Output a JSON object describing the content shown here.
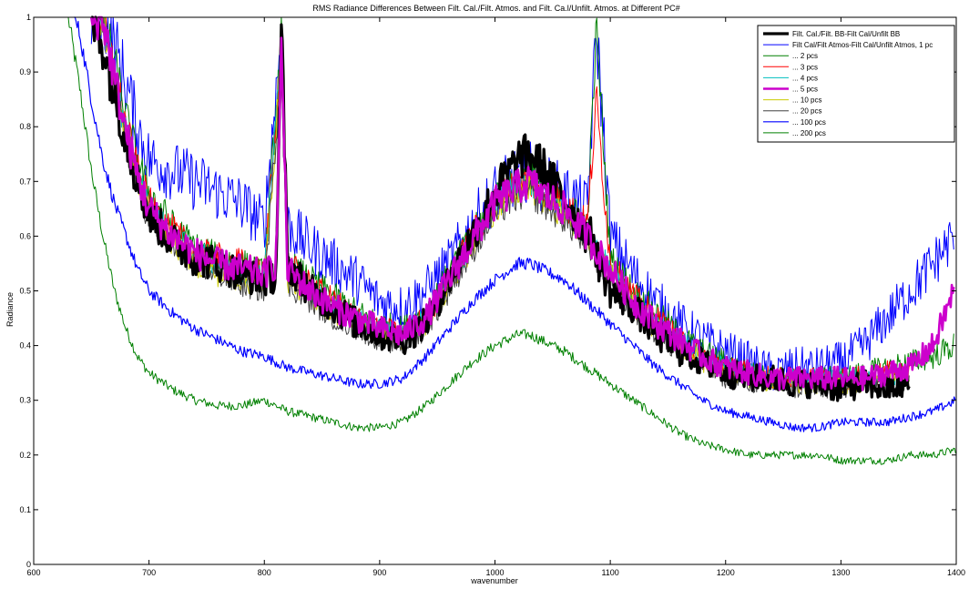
{
  "chart_data": {
    "type": "line",
    "title": "RMS Radiance Differences Between Filt. Cal./Filt. Atmos. and Filt. Ca.l/Unfilt. Atmos. at Different PC#",
    "xlabel": "wavenumber",
    "ylabel": "Radiance",
    "xlim": [
      600,
      1400
    ],
    "ylim": [
      0,
      1
    ],
    "xticks": [
      "600",
      "700",
      "800",
      "900",
      "1000",
      "1100",
      "1200",
      "1300",
      "1400"
    ],
    "yticks": [
      "0",
      "0.1",
      "0.2",
      "0.3",
      "0.4",
      "0.5",
      "0.6",
      "0.7",
      "0.8",
      "0.9",
      "1"
    ],
    "grid": false,
    "legend_position": "top-right",
    "series": [
      {
        "name": "Filt. Cal./Filt. BB-Filt Cal/Unfilt BB",
        "color": "#000000",
        "x": [
          650,
          660,
          670,
          680,
          690,
          700,
          720,
          740,
          760,
          780,
          800,
          810,
          815,
          820,
          840,
          860,
          880,
          900,
          920,
          940,
          960,
          980,
          1000,
          1020,
          1030,
          1040,
          1060,
          1080,
          1085,
          1090,
          1100,
          1120,
          1140,
          1160,
          1180,
          1200,
          1220,
          1240,
          1260,
          1280,
          1300,
          1320,
          1340,
          1360
        ],
        "y": [
          1.0,
          0.95,
          0.86,
          0.78,
          0.7,
          0.64,
          0.59,
          0.56,
          0.55,
          0.53,
          0.52,
          0.53,
          0.98,
          0.55,
          0.5,
          0.47,
          0.44,
          0.42,
          0.41,
          0.44,
          0.52,
          0.6,
          0.68,
          0.74,
          0.75,
          0.73,
          0.67,
          0.6,
          0.6,
          0.55,
          0.5,
          0.47,
          0.42,
          0.39,
          0.37,
          0.35,
          0.34,
          0.34,
          0.33,
          0.33,
          0.32,
          0.33,
          0.32,
          0.33
        ]
      },
      {
        "name": "Filt Cal/Filt Atmos-Filt Cal/Unfilt Atmos, 1 pc",
        "color": "#0000ff",
        "x": [
          650,
          660,
          670,
          680,
          690,
          700,
          720,
          740,
          760,
          780,
          800,
          815,
          820,
          840,
          860,
          880,
          900,
          920,
          940,
          960,
          980,
          1000,
          1020,
          1030,
          1040,
          1060,
          1080,
          1088,
          1100,
          1120,
          1140,
          1160,
          1180,
          1200,
          1220,
          1240,
          1260,
          1280,
          1300,
          1320,
          1340,
          1360,
          1380,
          1398
        ],
        "y": [
          1.0,
          1.0,
          0.95,
          0.88,
          0.8,
          0.74,
          0.72,
          0.7,
          0.68,
          0.66,
          0.62,
          0.98,
          0.62,
          0.58,
          0.55,
          0.52,
          0.48,
          0.47,
          0.5,
          0.55,
          0.62,
          0.68,
          0.71,
          0.72,
          0.7,
          0.68,
          0.65,
          0.98,
          0.6,
          0.53,
          0.48,
          0.44,
          0.41,
          0.39,
          0.37,
          0.35,
          0.36,
          0.36,
          0.37,
          0.4,
          0.45,
          0.5,
          0.55,
          0.6
        ]
      },
      {
        "name": "... 2 pcs",
        "color": "#008000",
        "x": [
          650,
          660,
          670,
          680,
          690,
          700,
          720,
          740,
          760,
          780,
          800,
          815,
          820,
          840,
          860,
          880,
          900,
          920,
          940,
          960,
          980,
          1000,
          1020,
          1030,
          1040,
          1060,
          1080,
          1088,
          1100,
          1120,
          1140,
          1160,
          1180,
          1200,
          1220,
          1240,
          1260,
          1280,
          1300,
          1320,
          1340,
          1360,
          1380,
          1398
        ],
        "y": [
          1.0,
          1.0,
          0.92,
          0.82,
          0.74,
          0.68,
          0.62,
          0.58,
          0.56,
          0.55,
          0.53,
          0.98,
          0.55,
          0.52,
          0.49,
          0.46,
          0.44,
          0.43,
          0.46,
          0.53,
          0.6,
          0.67,
          0.7,
          0.71,
          0.7,
          0.66,
          0.62,
          0.98,
          0.56,
          0.5,
          0.46,
          0.42,
          0.39,
          0.37,
          0.35,
          0.34,
          0.34,
          0.34,
          0.34,
          0.35,
          0.36,
          0.37,
          0.38,
          0.4
        ]
      },
      {
        "name": "... 3 pcs",
        "color": "#ff0000",
        "x": [
          650,
          660,
          670,
          680,
          690,
          700,
          720,
          740,
          760,
          780,
          800,
          815,
          820,
          840,
          860,
          880,
          900,
          920,
          940,
          960,
          980,
          1000,
          1020,
          1030,
          1040,
          1060,
          1080,
          1088,
          1100,
          1120,
          1140,
          1160,
          1180,
          1200,
          1220,
          1240,
          1260,
          1280,
          1300,
          1320,
          1340,
          1360
        ],
        "y": [
          1.0,
          1.0,
          0.9,
          0.8,
          0.72,
          0.66,
          0.61,
          0.57,
          0.56,
          0.55,
          0.53,
          0.97,
          0.55,
          0.51,
          0.48,
          0.45,
          0.43,
          0.42,
          0.45,
          0.52,
          0.6,
          0.66,
          0.7,
          0.7,
          0.69,
          0.66,
          0.62,
          0.85,
          0.55,
          0.49,
          0.45,
          0.41,
          0.38,
          0.36,
          0.35,
          0.34,
          0.34,
          0.34,
          0.34,
          0.34,
          0.35,
          0.35
        ]
      },
      {
        "name": "... 4 pcs",
        "color": "#00bfbf",
        "x": [
          650,
          660,
          670,
          680,
          690,
          700,
          720,
          740,
          760,
          780,
          800,
          815,
          820,
          840,
          860,
          880,
          900,
          920,
          940,
          960,
          980,
          1000,
          1020,
          1030,
          1040,
          1060,
          1080,
          1100,
          1120,
          1140,
          1160,
          1180,
          1200,
          1220,
          1240,
          1260,
          1280,
          1300,
          1320,
          1340,
          1360
        ],
        "y": [
          1.0,
          1.0,
          0.89,
          0.79,
          0.71,
          0.65,
          0.6,
          0.57,
          0.55,
          0.54,
          0.53,
          0.96,
          0.54,
          0.5,
          0.47,
          0.45,
          0.43,
          0.42,
          0.45,
          0.52,
          0.59,
          0.66,
          0.69,
          0.7,
          0.68,
          0.65,
          0.6,
          0.54,
          0.48,
          0.44,
          0.41,
          0.38,
          0.36,
          0.35,
          0.34,
          0.34,
          0.34,
          0.34,
          0.34,
          0.34,
          0.35
        ]
      },
      {
        "name": "... 5 pcs",
        "color": "#cc00cc",
        "x": [
          650,
          660,
          670,
          680,
          690,
          700,
          720,
          740,
          760,
          780,
          800,
          810,
          815,
          820,
          840,
          860,
          880,
          900,
          920,
          940,
          960,
          980,
          1000,
          1020,
          1030,
          1040,
          1060,
          1080,
          1100,
          1120,
          1140,
          1160,
          1180,
          1200,
          1220,
          1240,
          1260,
          1280,
          1300,
          1320,
          1340,
          1360,
          1380,
          1398
        ],
        "y": [
          1.0,
          1.0,
          0.89,
          0.79,
          0.71,
          0.65,
          0.6,
          0.57,
          0.55,
          0.54,
          0.53,
          0.55,
          0.95,
          0.54,
          0.5,
          0.47,
          0.45,
          0.43,
          0.42,
          0.45,
          0.52,
          0.59,
          0.66,
          0.69,
          0.7,
          0.68,
          0.65,
          0.6,
          0.54,
          0.48,
          0.44,
          0.41,
          0.38,
          0.36,
          0.35,
          0.34,
          0.34,
          0.34,
          0.34,
          0.34,
          0.35,
          0.36,
          0.4,
          0.5
        ]
      },
      {
        "name": "... 10 pcs",
        "color": "#cccc00",
        "x": [
          650,
          660,
          670,
          680,
          690,
          700,
          720,
          740,
          760,
          780,
          800,
          815,
          820,
          840,
          860,
          880,
          900,
          920,
          940,
          960,
          980,
          1000,
          1020,
          1030,
          1040,
          1060,
          1080,
          1100,
          1120,
          1140,
          1160,
          1180,
          1200,
          1220,
          1240,
          1260,
          1280,
          1300,
          1320,
          1340,
          1360
        ],
        "y": [
          1.0,
          1.0,
          0.88,
          0.78,
          0.7,
          0.64,
          0.59,
          0.55,
          0.53,
          0.52,
          0.51,
          0.93,
          0.52,
          0.49,
          0.46,
          0.44,
          0.42,
          0.41,
          0.44,
          0.51,
          0.58,
          0.65,
          0.68,
          0.69,
          0.67,
          0.64,
          0.59,
          0.53,
          0.47,
          0.43,
          0.4,
          0.37,
          0.35,
          0.34,
          0.33,
          0.33,
          0.33,
          0.33,
          0.33,
          0.34,
          0.34
        ]
      },
      {
        "name": "... 20 pcs",
        "color": "#404040",
        "x": [
          650,
          660,
          670,
          680,
          690,
          700,
          720,
          740,
          760,
          780,
          800,
          815,
          820,
          840,
          860,
          880,
          900,
          920,
          940,
          960,
          980,
          1000,
          1020,
          1030,
          1040,
          1060,
          1080,
          1100,
          1120,
          1140,
          1160,
          1180,
          1200,
          1220,
          1240,
          1260,
          1280,
          1300,
          1320,
          1340,
          1360
        ],
        "y": [
          1.0,
          1.0,
          0.87,
          0.77,
          0.69,
          0.63,
          0.58,
          0.55,
          0.53,
          0.51,
          0.5,
          0.92,
          0.51,
          0.48,
          0.45,
          0.43,
          0.41,
          0.4,
          0.43,
          0.5,
          0.57,
          0.64,
          0.67,
          0.68,
          0.66,
          0.63,
          0.58,
          0.52,
          0.46,
          0.42,
          0.39,
          0.36,
          0.34,
          0.33,
          0.33,
          0.32,
          0.32,
          0.32,
          0.33,
          0.33,
          0.33
        ]
      },
      {
        "name": "... 100 pcs",
        "color": "#0000ff",
        "x": [
          635,
          640,
          650,
          660,
          670,
          680,
          690,
          700,
          720,
          740,
          760,
          780,
          800,
          820,
          840,
          860,
          880,
          900,
          920,
          940,
          960,
          980,
          1000,
          1020,
          1030,
          1040,
          1060,
          1080,
          1100,
          1120,
          1140,
          1160,
          1180,
          1200,
          1220,
          1240,
          1260,
          1280,
          1300,
          1320,
          1340,
          1360,
          1380,
          1400
        ],
        "y": [
          1.0,
          0.97,
          0.85,
          0.74,
          0.66,
          0.6,
          0.54,
          0.5,
          0.46,
          0.43,
          0.41,
          0.39,
          0.38,
          0.36,
          0.35,
          0.34,
          0.33,
          0.33,
          0.34,
          0.38,
          0.43,
          0.48,
          0.52,
          0.55,
          0.55,
          0.54,
          0.52,
          0.48,
          0.44,
          0.4,
          0.36,
          0.33,
          0.3,
          0.28,
          0.27,
          0.26,
          0.25,
          0.25,
          0.26,
          0.26,
          0.26,
          0.27,
          0.28,
          0.3
        ]
      },
      {
        "name": "... 200 pcs",
        "color": "#008000",
        "x": [
          630,
          640,
          650,
          660,
          670,
          680,
          690,
          700,
          720,
          740,
          760,
          780,
          800,
          820,
          840,
          860,
          880,
          900,
          920,
          940,
          960,
          980,
          1000,
          1020,
          1030,
          1040,
          1060,
          1080,
          1100,
          1120,
          1140,
          1160,
          1180,
          1200,
          1220,
          1240,
          1260,
          1280,
          1300,
          1320,
          1340,
          1360,
          1380,
          1400
        ],
        "y": [
          1.0,
          0.87,
          0.72,
          0.6,
          0.5,
          0.43,
          0.38,
          0.35,
          0.32,
          0.3,
          0.29,
          0.29,
          0.3,
          0.28,
          0.27,
          0.26,
          0.25,
          0.25,
          0.26,
          0.29,
          0.33,
          0.37,
          0.4,
          0.42,
          0.42,
          0.41,
          0.39,
          0.36,
          0.33,
          0.3,
          0.27,
          0.24,
          0.22,
          0.21,
          0.2,
          0.2,
          0.2,
          0.2,
          0.19,
          0.19,
          0.19,
          0.2,
          0.2,
          0.21
        ]
      }
    ]
  }
}
